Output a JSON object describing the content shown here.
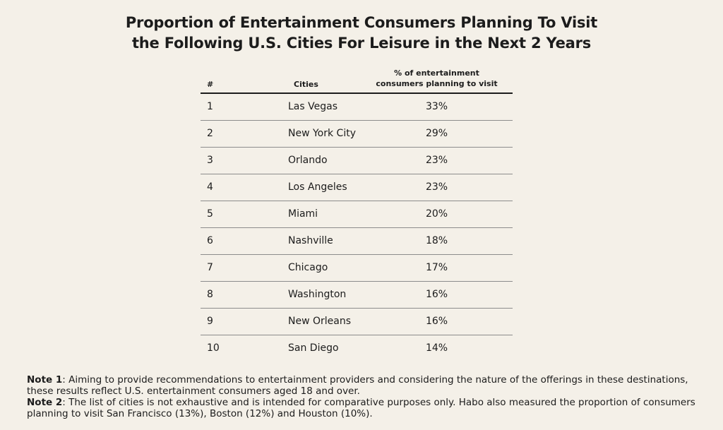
{
  "title_line1": "Proportion of Entertainment Consumers Planning To Visit",
  "title_line2": "the Following U.S. Cities For Leisure in the Next 2 Years",
  "chart_data": {
    "type": "table",
    "columns": [
      "#",
      "Cities",
      "% of entertainment consumers planning to visit"
    ],
    "rows": [
      {
        "rank": "1",
        "city": "Las Vegas",
        "pct": "33%"
      },
      {
        "rank": "2",
        "city": "New York City",
        "pct": "29%"
      },
      {
        "rank": "3",
        "city": "Orlando",
        "pct": "23%"
      },
      {
        "rank": "4",
        "city": "Los Angeles",
        "pct": "23%"
      },
      {
        "rank": "5",
        "city": "Miami",
        "pct": "20%"
      },
      {
        "rank": "6",
        "city": "Nashville",
        "pct": "18%"
      },
      {
        "rank": "7",
        "city": "Chicago",
        "pct": "17%"
      },
      {
        "rank": "8",
        "city": "Washington",
        "pct": "16%"
      },
      {
        "rank": "9",
        "city": "New Orleans",
        "pct": "16%"
      },
      {
        "rank": "10",
        "city": "San Diego",
        "pct": "14%"
      }
    ]
  },
  "header": {
    "num": "#",
    "city": "Cities",
    "pct_line1": "% of entertainment",
    "pct_line2": "consumers planning to visit"
  },
  "notes": {
    "note1_label": "Note 1",
    "note1_text": ": Aiming to provide recommendations to entertainment providers and considering the nature of the offerings in these destinations, these results reflect U.S. entertainment consumers aged 18 and over.",
    "note2_label": "Note 2",
    "note2_text": ": The list of cities is not exhaustive and is intended for comparative purposes only. Habo also measured the proportion of consumers planning to visit San Francisco (13%), Boston (12%) and Houston (10%)."
  },
  "colors": {
    "background": "#f4f0e8",
    "text": "#1c1c1c",
    "rule": "#8c8c8c"
  }
}
